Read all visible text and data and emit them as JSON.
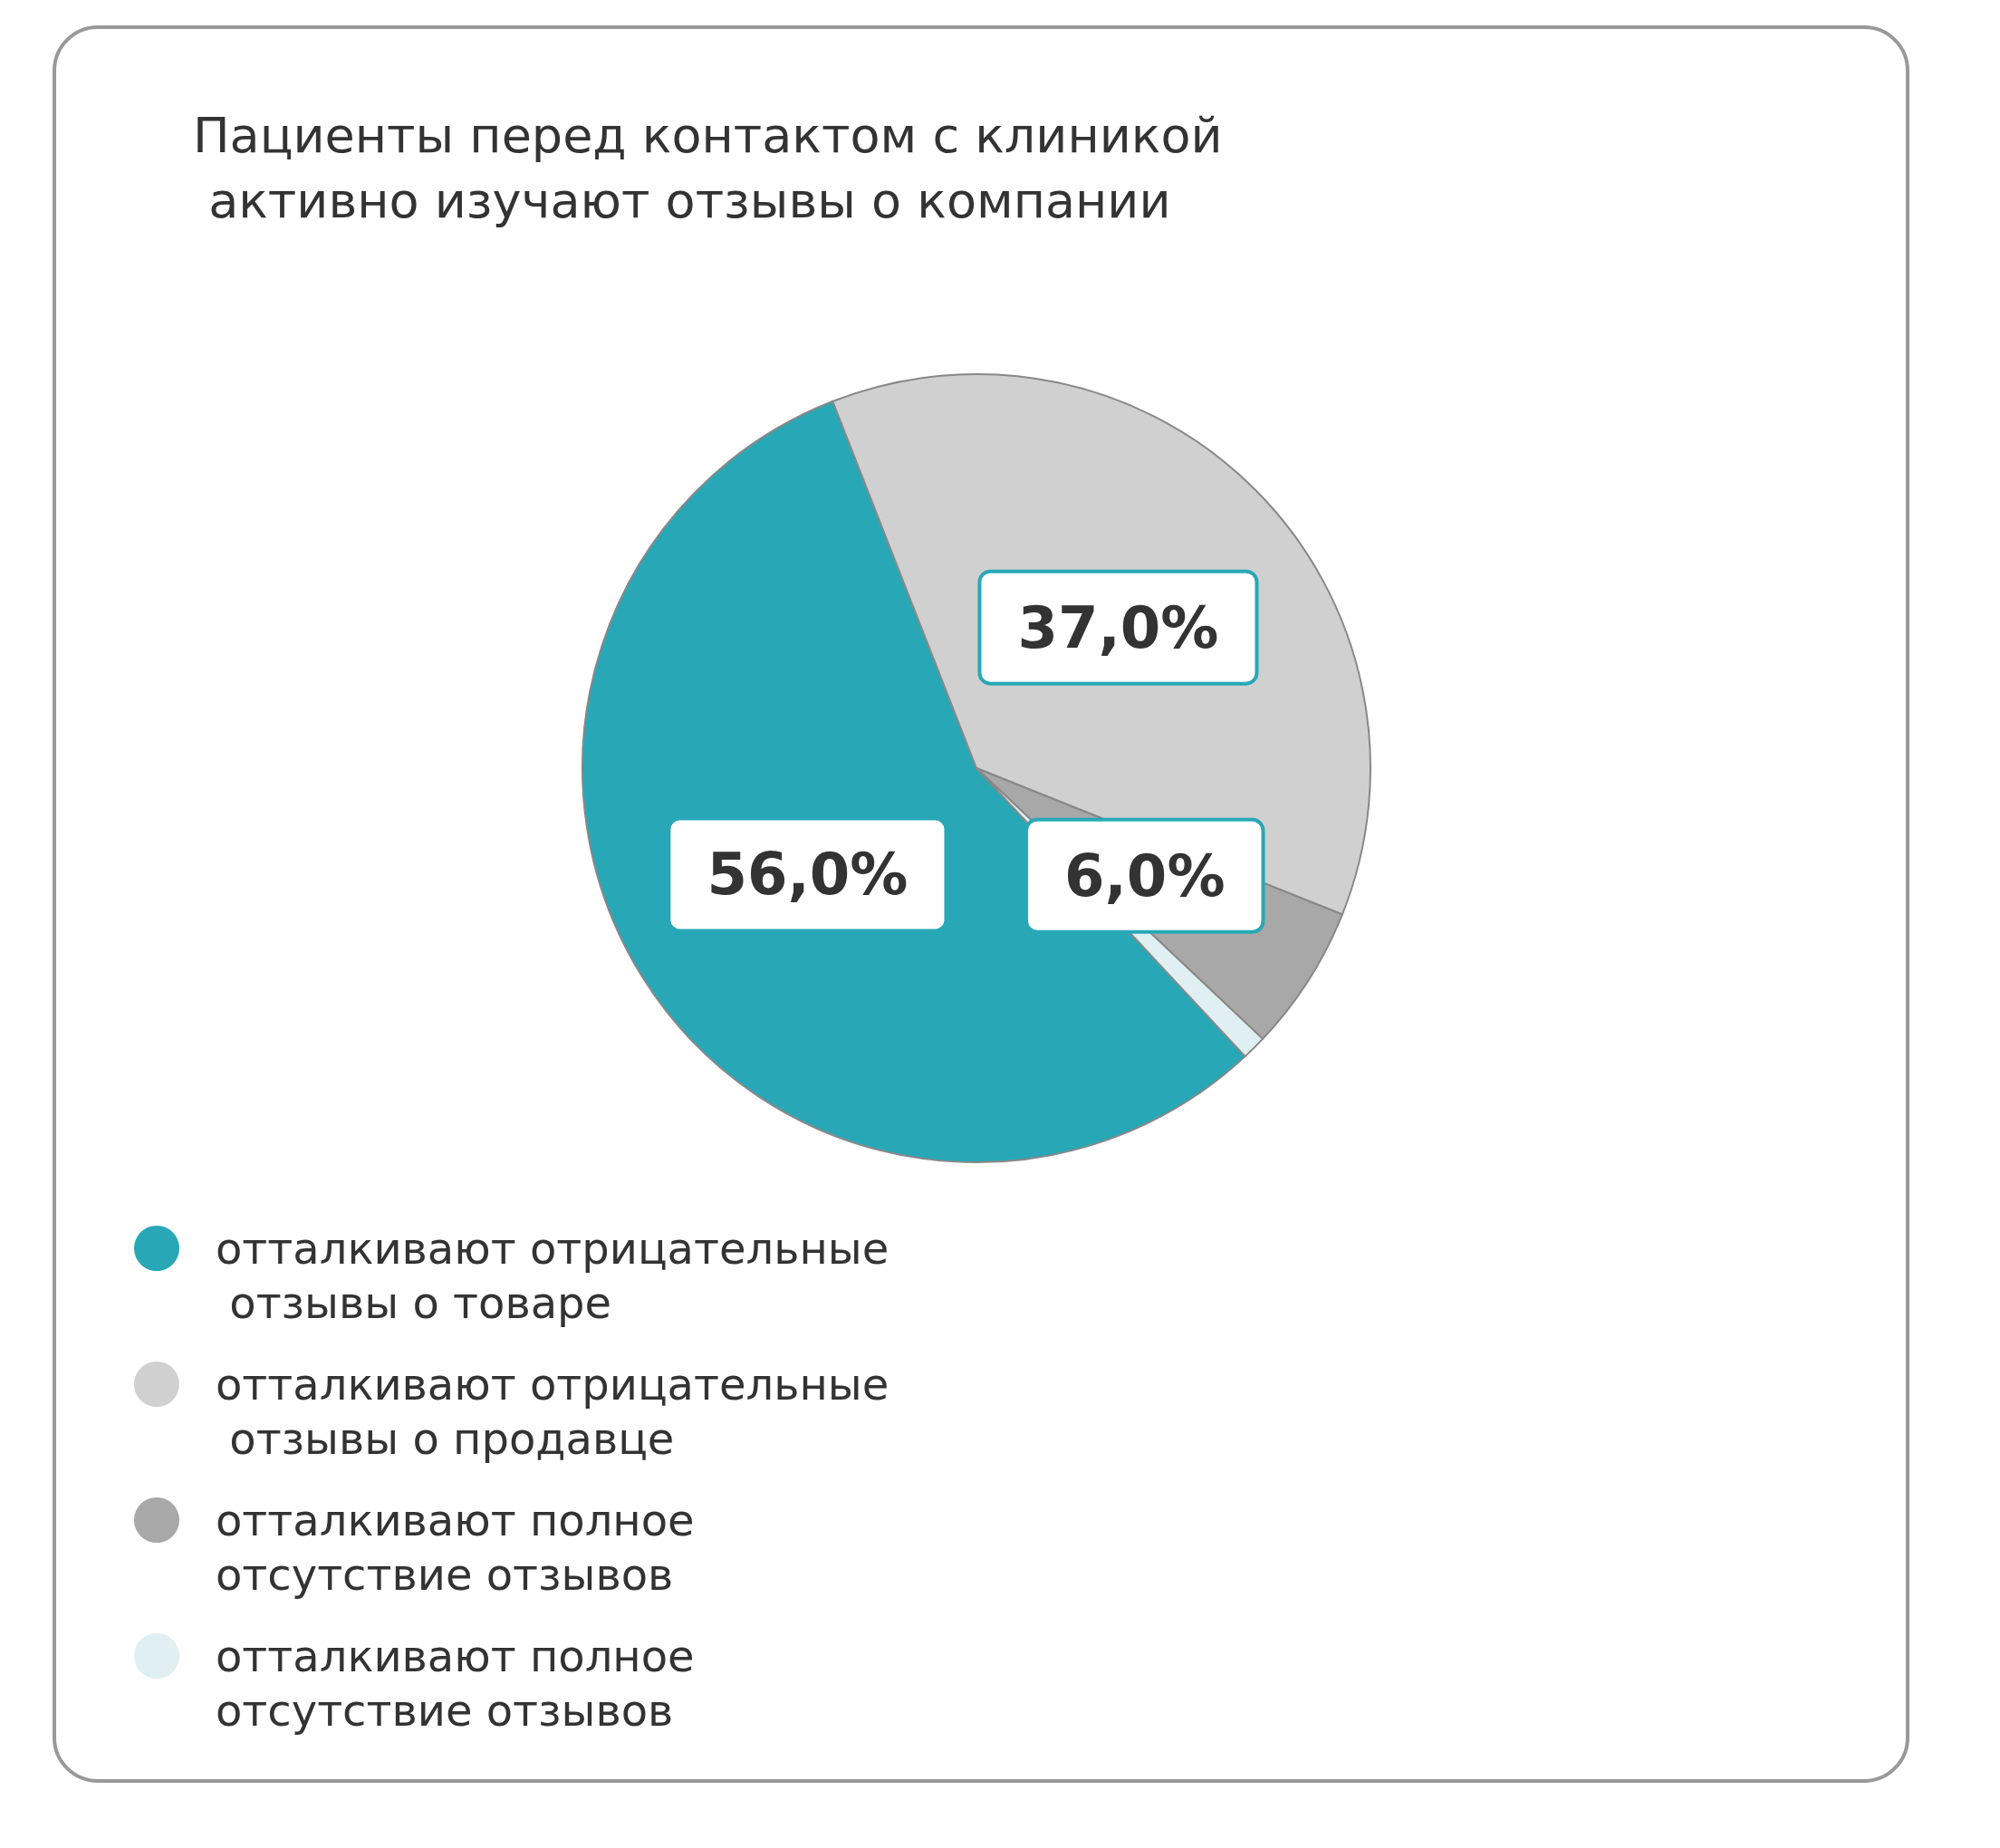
{
  "chart_data": {
    "type": "pie",
    "title": "Пациенты перед контактом с клиникой активно изучают отзывы о компании",
    "categories": [
      "отталкивают отрицательные отзывы о товаре",
      "отталкивают отрицательные отзывы о продавце",
      "отталкивают полное отсутствие отзывов",
      "отталкивают полное отсутствие отзывов"
    ],
    "values": [
      56,
      37,
      6,
      1
    ],
    "colors": [
      "#28a8b7",
      "#d0d0d0",
      "#a8a8a8",
      "#dfeff2"
    ],
    "value_labels": [
      "56,0%",
      "37,0%",
      "6,0%",
      null
    ],
    "legend": "bottom left"
  }
}
